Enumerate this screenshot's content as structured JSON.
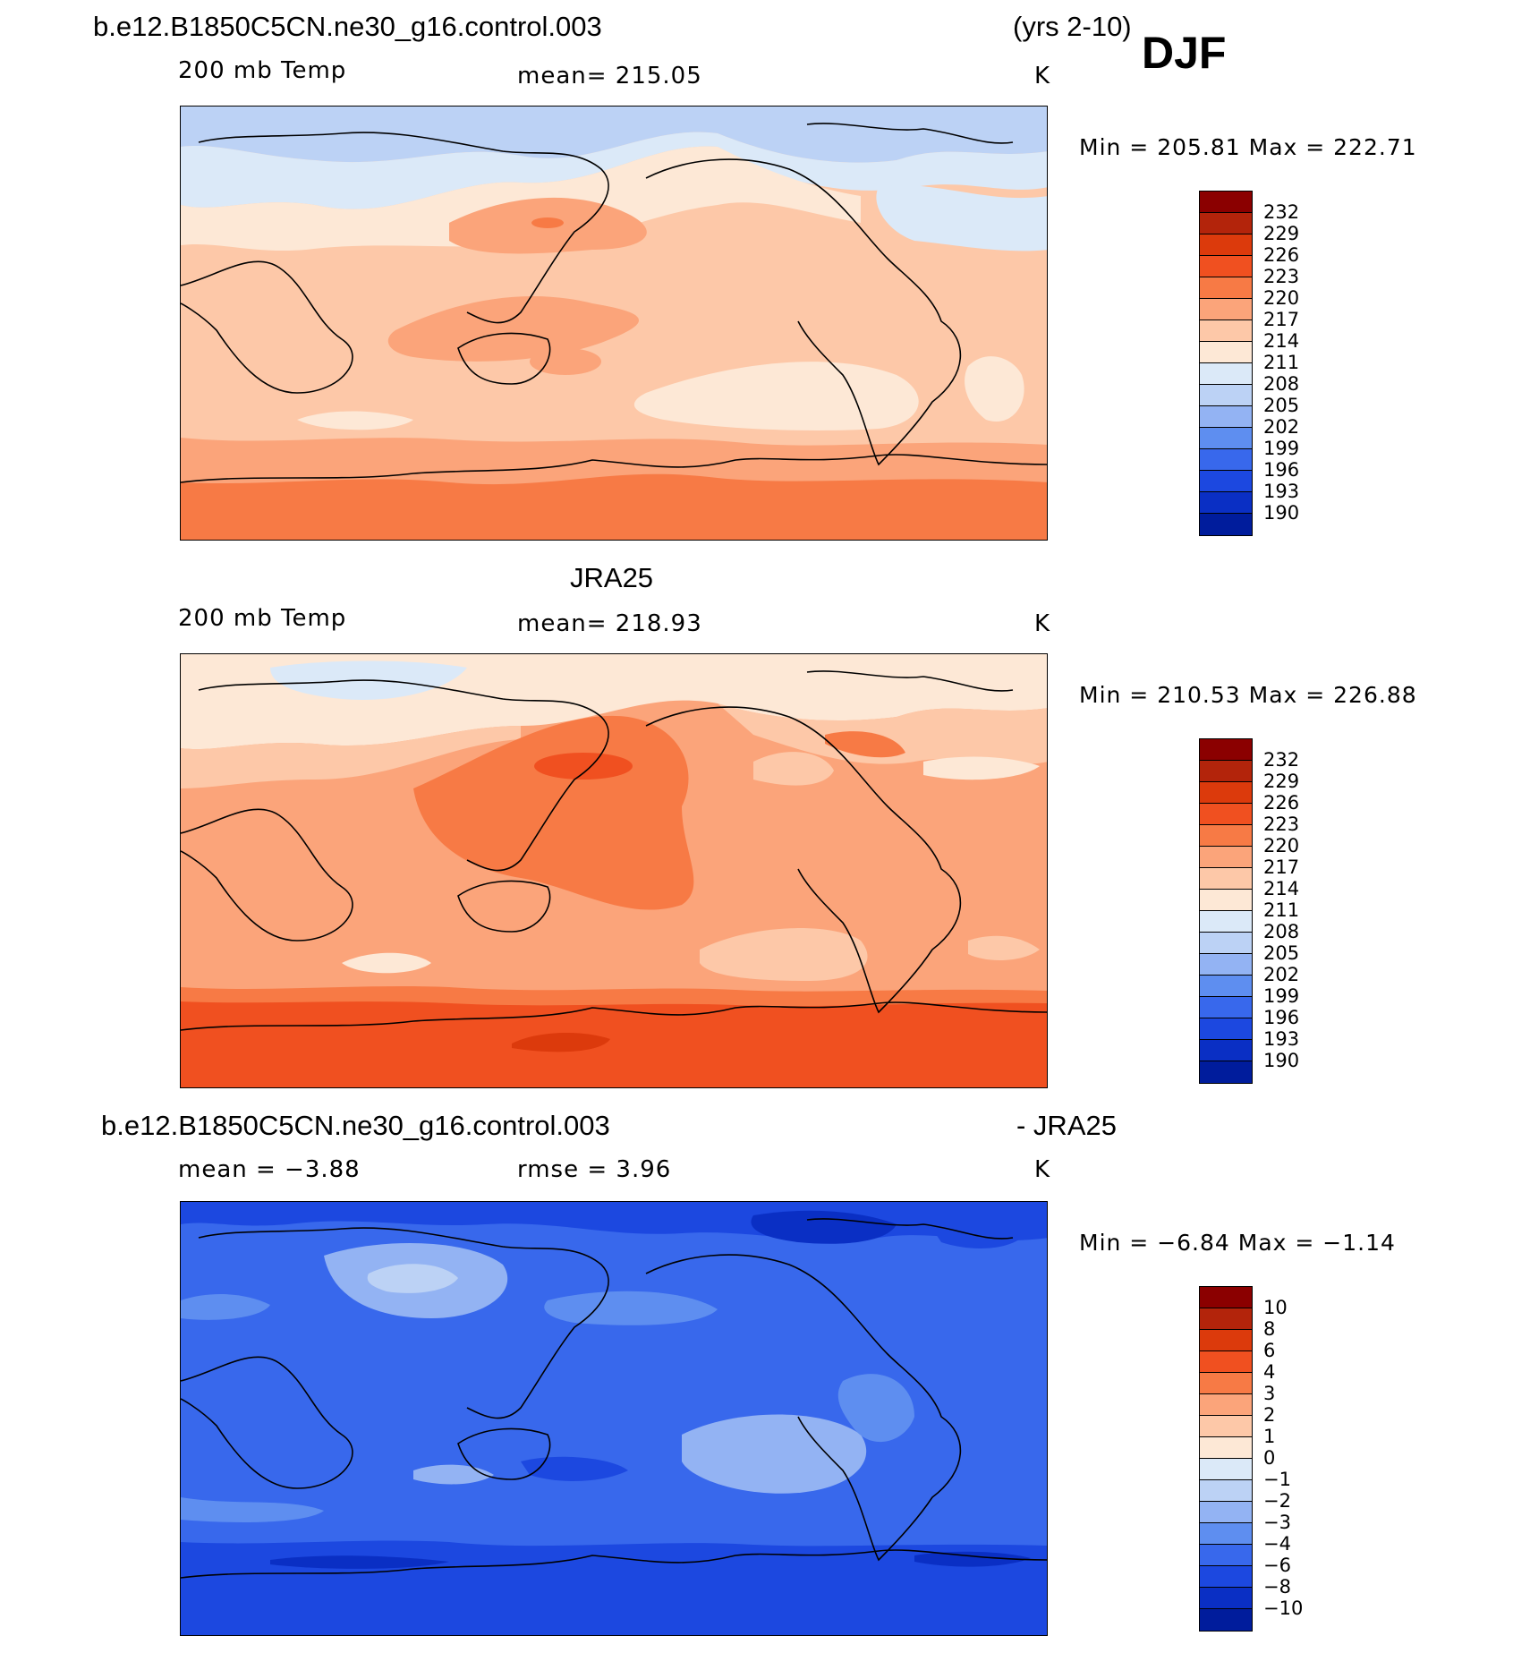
{
  "header": {
    "case_name": "b.e12.B1850C5CN.ne30_g16.control.003",
    "years": "(yrs 2-10)",
    "season": "DJF"
  },
  "panels": [
    {
      "id": "model",
      "title": "",
      "variable": "200 mb Temp",
      "stat": "mean=  215.05",
      "units": "K",
      "min_max": "Min  =  205.81  Max  =  222.71",
      "colorbar": [
        "232",
        "229",
        "226",
        "223",
        "220",
        "217",
        "214",
        "211",
        "208",
        "205",
        "202",
        "199",
        "196",
        "193",
        "190"
      ]
    },
    {
      "id": "obs",
      "title": "JRA25",
      "variable": "200 mb Temp",
      "stat": "mean=  218.93",
      "units": "K",
      "min_max": "Min  =  210.53  Max  =  226.88",
      "colorbar": [
        "232",
        "229",
        "226",
        "223",
        "220",
        "217",
        "214",
        "211",
        "208",
        "205",
        "202",
        "199",
        "196",
        "193",
        "190"
      ]
    },
    {
      "id": "diff",
      "title_left": "b.e12.B1850C5CN.ne30_g16.control.003",
      "title_right": "- JRA25",
      "stat_mean": "mean  =     −3.88",
      "stat_rmse": "rmse  =     3.96",
      "units": "K",
      "min_max": "Min  =     −6.84  Max  =    −1.14",
      "colorbar": [
        "10",
        "8",
        "6",
        "4",
        "3",
        "2",
        "1",
        "0",
        "−1",
        "−2",
        "−3",
        "−4",
        "−6",
        "−8",
        "−10"
      ]
    }
  ],
  "colors": {
    "scale": [
      "#8b0000",
      "#b3240b",
      "#dc3a0c",
      "#f05020",
      "#f77a45",
      "#fba47a",
      "#fdc8a8",
      "#fde8d6",
      "#dbe9f8",
      "#bcd2f5",
      "#93b3f3",
      "#5e8ef0",
      "#3868ec",
      "#1c48e0",
      "#0a2fc4",
      "#001c9c",
      "#00108a"
    ]
  }
}
